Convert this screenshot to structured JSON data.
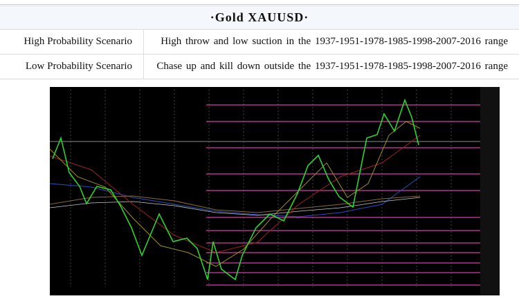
{
  "header": {
    "title": "·Gold XAUUSD·"
  },
  "table": {
    "rows": [
      [
        "High Probability Scenario",
        "High throw and low suction in the 1937-1951-1978-1985-1998-2007-2016 range"
      ],
      [
        "Low Probability Scenario",
        "Chase up and kill down outside the 1937-1951-1978-1985-1998-2007-2016 range"
      ]
    ]
  }
}
